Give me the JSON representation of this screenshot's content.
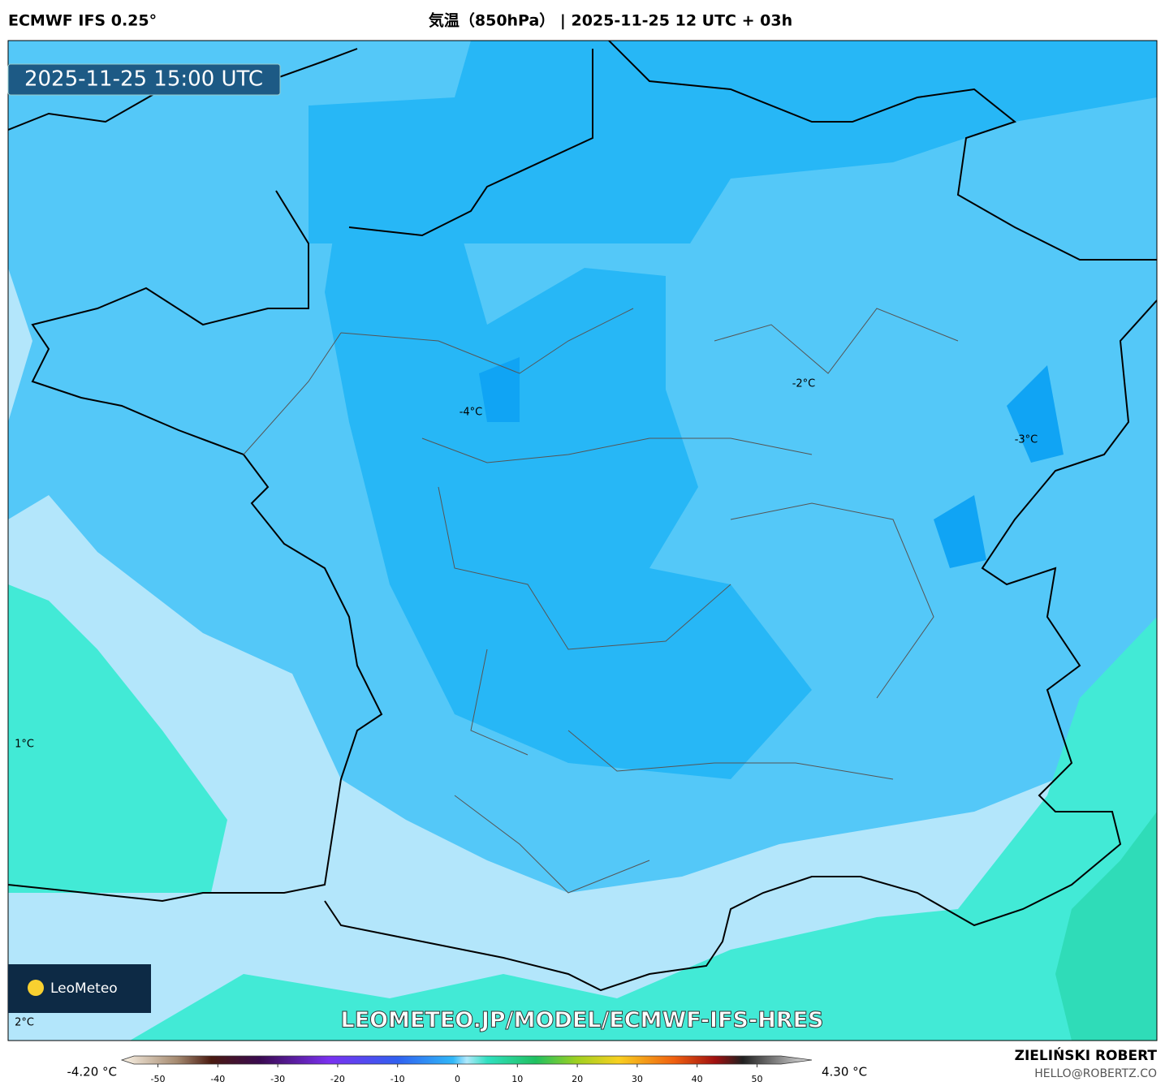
{
  "header": {
    "left_title": "ECMWF IFS 0.25°",
    "center_title": "気温（850hPa） | 2025-11-25 12 UTC + 03h"
  },
  "map": {
    "timestamp": "2025-11-25 15:00 UTC",
    "contour_labels": [
      "-4°C",
      "-2°C",
      "-3°C",
      "1°C",
      "2°C"
    ],
    "watermark": "LEOMETEO.JP/MODEL/ECMWF-IFS-HRES",
    "logo": "LeoMeteo"
  },
  "colorbar": {
    "min_label": "-4.20 °C",
    "max_label": "4.30 °C",
    "range": [
      -54,
      54
    ],
    "ticks": [
      -50,
      -40,
      -30,
      -20,
      -10,
      0,
      10,
      20,
      30,
      40,
      50
    ]
  },
  "footer": {
    "author": "ZIELIŃSKI ROBERT",
    "email": "HELLO@ROBERTZ.CO"
  }
}
